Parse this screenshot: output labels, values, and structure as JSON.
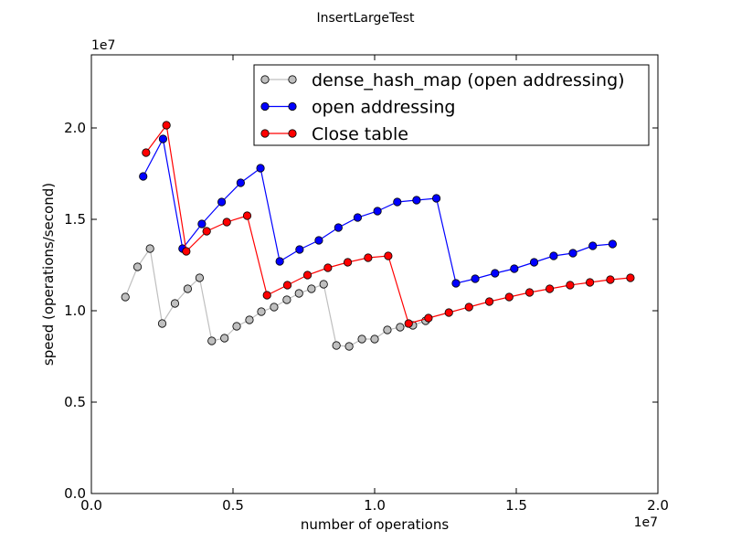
{
  "chart_data": {
    "type": "line",
    "title": "InsertLargeTest",
    "xlabel": "number of operations",
    "ylabel": "speed (operations/second)",
    "x_multiplier_label": "1e7",
    "y_multiplier_label": "1e7",
    "xlim": [
      0,
      2.0
    ],
    "ylim": [
      0,
      2.4
    ],
    "x_ticks": [
      0.0,
      0.5,
      1.0,
      1.5,
      2.0
    ],
    "x_tick_labels": [
      "0.0",
      "0.5",
      "1.0",
      "1.5",
      "2.0"
    ],
    "y_ticks": [
      0.0,
      0.5,
      1.0,
      1.5,
      2.0
    ],
    "y_tick_labels": [
      "0.0",
      "0.5",
      "1.0",
      "1.5",
      "2.0"
    ],
    "grid": false,
    "legend_position": "top-right",
    "series": [
      {
        "name": "dense_hash_map (open addressing)",
        "line_color": "#bfbfbf",
        "marker_color": "#bfbfbf",
        "points": [
          [
            0.12,
            1.075
          ],
          [
            0.163,
            1.24
          ],
          [
            0.207,
            1.34
          ],
          [
            0.25,
            0.93
          ],
          [
            0.295,
            1.04
          ],
          [
            0.34,
            1.12
          ],
          [
            0.382,
            1.18
          ],
          [
            0.425,
            0.835
          ],
          [
            0.47,
            0.85
          ],
          [
            0.513,
            0.915
          ],
          [
            0.558,
            0.95
          ],
          [
            0.6,
            0.995
          ],
          [
            0.645,
            1.02
          ],
          [
            0.69,
            1.06
          ],
          [
            0.733,
            1.095
          ],
          [
            0.777,
            1.12
          ],
          [
            0.82,
            1.145
          ],
          [
            0.865,
            0.81
          ],
          [
            0.91,
            0.805
          ],
          [
            0.955,
            0.845
          ],
          [
            1.0,
            0.845
          ],
          [
            1.045,
            0.895
          ],
          [
            1.09,
            0.91
          ],
          [
            1.135,
            0.92
          ],
          [
            1.18,
            0.945
          ]
        ]
      },
      {
        "name": "open addressing",
        "line_color": "#0000ff",
        "marker_color": "#0000ff",
        "points": [
          [
            0.183,
            1.735
          ],
          [
            0.253,
            1.94
          ],
          [
            0.322,
            1.34
          ],
          [
            0.39,
            1.475
          ],
          [
            0.46,
            1.595
          ],
          [
            0.527,
            1.7
          ],
          [
            0.597,
            1.78
          ],
          [
            0.665,
            1.27
          ],
          [
            0.735,
            1.335
          ],
          [
            0.803,
            1.385
          ],
          [
            0.872,
            1.455
          ],
          [
            0.94,
            1.51
          ],
          [
            1.01,
            1.545
          ],
          [
            1.08,
            1.595
          ],
          [
            1.148,
            1.605
          ],
          [
            1.218,
            1.615
          ],
          [
            1.287,
            1.15
          ],
          [
            1.355,
            1.175
          ],
          [
            1.425,
            1.205
          ],
          [
            1.493,
            1.23
          ],
          [
            1.563,
            1.265
          ],
          [
            1.632,
            1.3
          ],
          [
            1.7,
            1.315
          ],
          [
            1.77,
            1.355
          ],
          [
            1.84,
            1.365
          ]
        ]
      },
      {
        "name": "Close table",
        "line_color": "#ff0000",
        "marker_color": "#ff0000",
        "points": [
          [
            0.193,
            1.865
          ],
          [
            0.265,
            2.015
          ],
          [
            0.335,
            1.325
          ],
          [
            0.407,
            1.435
          ],
          [
            0.478,
            1.485
          ],
          [
            0.55,
            1.52
          ],
          [
            0.62,
            1.085
          ],
          [
            0.692,
            1.14
          ],
          [
            0.763,
            1.195
          ],
          [
            0.835,
            1.235
          ],
          [
            0.905,
            1.265
          ],
          [
            0.977,
            1.29
          ],
          [
            1.048,
            1.3
          ],
          [
            1.12,
            0.93
          ],
          [
            1.19,
            0.96
          ],
          [
            1.262,
            0.99
          ],
          [
            1.333,
            1.02
          ],
          [
            1.405,
            1.05
          ],
          [
            1.475,
            1.075
          ],
          [
            1.547,
            1.1
          ],
          [
            1.618,
            1.12
          ],
          [
            1.69,
            1.14
          ],
          [
            1.76,
            1.155
          ],
          [
            1.832,
            1.17
          ],
          [
            1.903,
            1.18
          ]
        ]
      }
    ]
  }
}
